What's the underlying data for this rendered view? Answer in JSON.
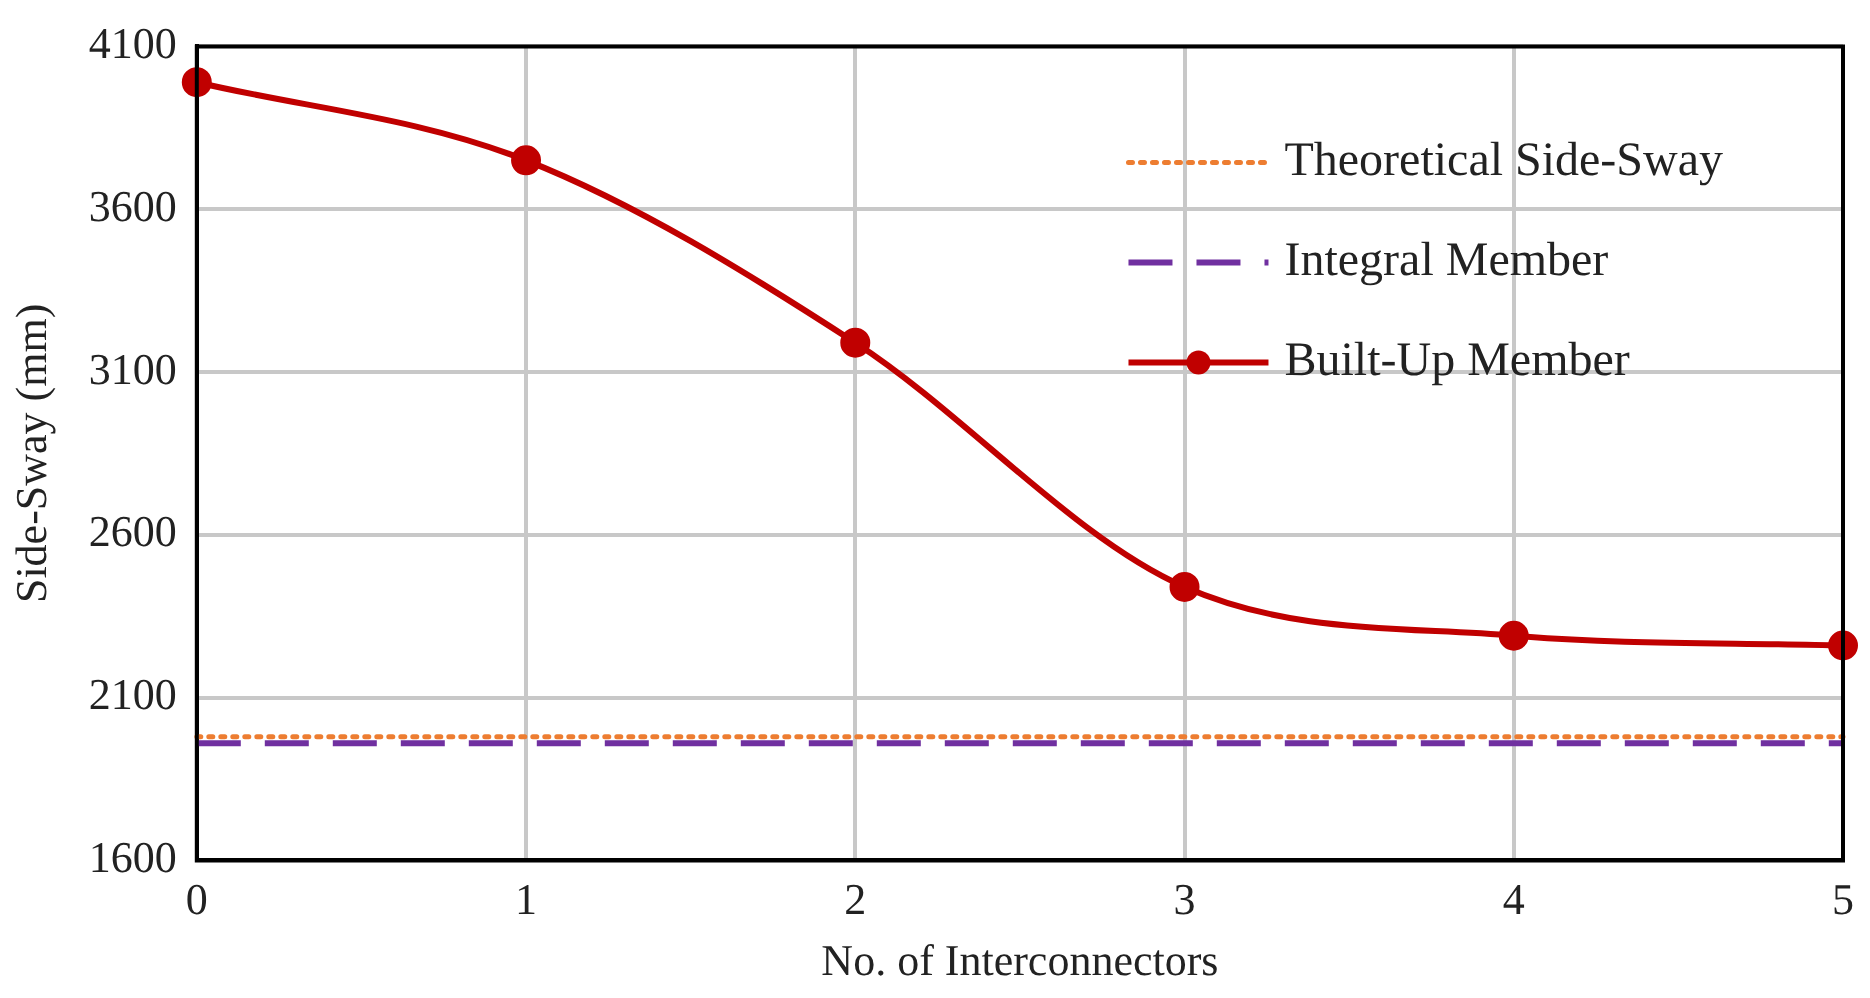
{
  "chart_data": {
    "type": "line",
    "xlabel": "No. of Interconnectors",
    "ylabel": "Side-Sway (mm)",
    "x": [
      0,
      1,
      2,
      3,
      4,
      5
    ],
    "series": [
      {
        "name": "Theoretical Side-Sway",
        "color": "#ed7d31",
        "values": [
          1980,
          1980,
          1980,
          1980,
          1980,
          1980
        ],
        "line_style": "dotted",
        "marker": "none"
      },
      {
        "name": "Integral Member",
        "color": "#7030a0",
        "values": [
          1960,
          1960,
          1960,
          1960,
          1960,
          1960
        ],
        "line_style": "dashed",
        "marker": "none"
      },
      {
        "name": "Built-Up Member",
        "color": "#c00000",
        "values": [
          3990,
          3750,
          3190,
          2440,
          2290,
          2260
        ],
        "line_style": "solid",
        "marker": "circle"
      }
    ],
    "xlim": [
      0,
      5
    ],
    "xticks": [
      0,
      1,
      2,
      3,
      4,
      5
    ],
    "ylim": [
      1600,
      4100
    ],
    "yticks": [
      1600,
      2100,
      2600,
      3100,
      3600,
      4100
    ],
    "grid": true,
    "legend": "top right"
  }
}
